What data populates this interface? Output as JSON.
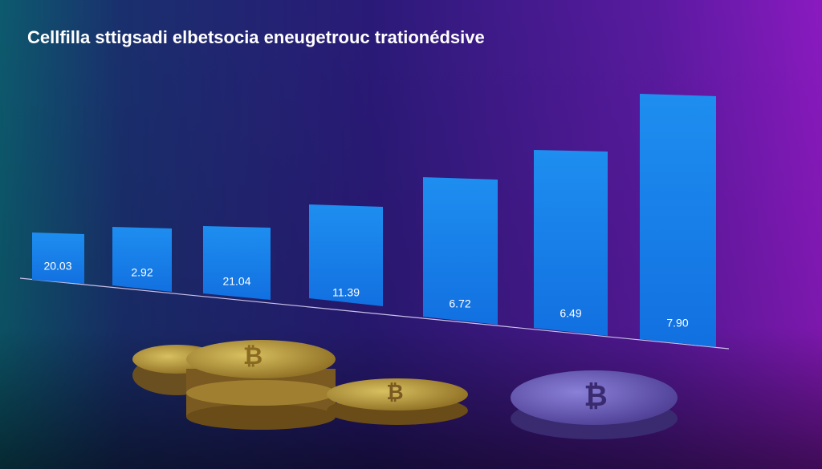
{
  "title": "Cellfilla sttigsadi elbetsocia eneugetrouc trationédsive",
  "bars": [
    {
      "label": "20.03"
    },
    {
      "label": "2.92"
    },
    {
      "label": "21.04"
    },
    {
      "label": "11.39"
    },
    {
      "label": "6.72"
    },
    {
      "label": "6.49"
    },
    {
      "label": "7.90"
    }
  ]
}
